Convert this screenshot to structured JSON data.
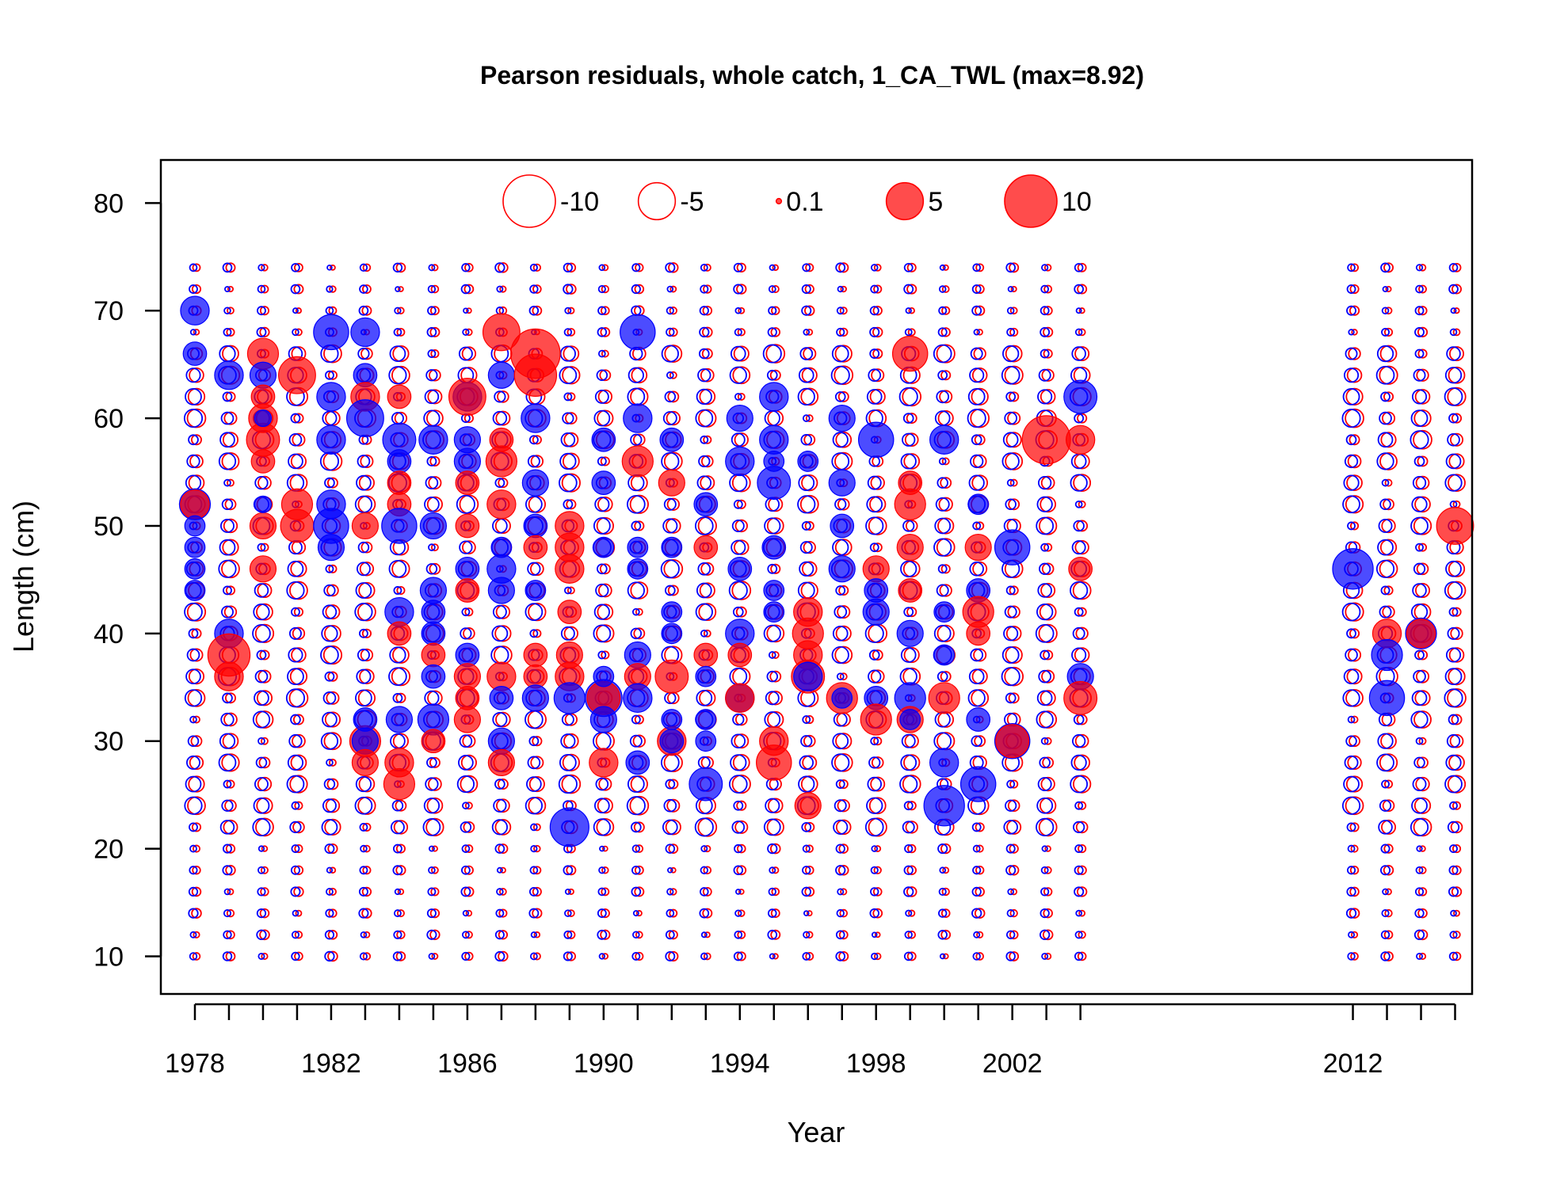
{
  "chart_data": {
    "type": "scatter",
    "title": "Pearson residuals, whole catch, 1_CA_TWL (max=8.92)",
    "xlabel": "Year",
    "ylabel": "Length (cm)",
    "xlim": [
      1977,
      2015.5
    ],
    "ylim": [
      6.5,
      84
    ],
    "xticks_labeled": [
      1978,
      1982,
      1986,
      1990,
      1994,
      1998,
      2002,
      2012
    ],
    "xticks_minor": [
      1978,
      1979,
      1980,
      1981,
      1982,
      1983,
      1984,
      1985,
      1986,
      1987,
      1988,
      1989,
      1990,
      1991,
      1992,
      1993,
      1994,
      1995,
      1996,
      1997,
      1998,
      1999,
      2000,
      2001,
      2002,
      2003,
      2004,
      2012,
      2013,
      2014,
      2015
    ],
    "yticks": [
      10,
      20,
      30,
      40,
      50,
      60,
      70,
      80
    ],
    "grid": false,
    "legend": {
      "placement": "top-center",
      "entries": [
        {
          "label": "-10",
          "value": -10
        },
        {
          "label": "-5",
          "value": -5
        },
        {
          "label": "0.1",
          "value": 0.1
        },
        {
          "label": "5",
          "value": 5
        },
        {
          "label": "10",
          "value": 10
        }
      ]
    },
    "colors": {
      "positive": "#ff0000",
      "negative": "#0000ff",
      "axis": "#000000"
    },
    "years_sampled": [
      1978,
      1979,
      1980,
      1981,
      1982,
      1983,
      1984,
      1985,
      1986,
      1987,
      1988,
      1989,
      1990,
      1991,
      1992,
      1993,
      1994,
      1995,
      1996,
      1997,
      1998,
      1999,
      2000,
      2001,
      2002,
      2003,
      2004,
      2012,
      2013,
      2014,
      2015
    ],
    "length_bins": [
      10,
      74,
      2
    ],
    "points": [
      [
        1978,
        70,
        -3
      ],
      [
        1978,
        66,
        -2
      ],
      [
        1978,
        52,
        -3.5
      ],
      [
        1978,
        52,
        3
      ],
      [
        1978,
        48,
        -1.5
      ],
      [
        1978,
        46,
        -1.5
      ],
      [
        1978,
        44,
        -1.5
      ],
      [
        1978,
        50,
        -1.5
      ],
      [
        1979,
        64,
        -3
      ],
      [
        1979,
        40,
        -3
      ],
      [
        1979,
        38,
        6.5
      ],
      [
        1979,
        36,
        3
      ],
      [
        1980,
        66,
        3.5
      ],
      [
        1980,
        64,
        -2.5
      ],
      [
        1980,
        62,
        2
      ],
      [
        1980,
        60,
        3
      ],
      [
        1980,
        58,
        4
      ],
      [
        1980,
        56,
        2
      ],
      [
        1980,
        50,
        2.5
      ],
      [
        1980,
        46,
        2.5
      ],
      [
        1980,
        52,
        -1
      ],
      [
        1980,
        60,
        -1
      ],
      [
        1981,
        64,
        5
      ],
      [
        1981,
        52,
        3.5
      ],
      [
        1981,
        50,
        4
      ],
      [
        1982,
        68,
        -4.5
      ],
      [
        1982,
        62,
        -3
      ],
      [
        1982,
        58,
        -3
      ],
      [
        1982,
        52,
        -3
      ],
      [
        1982,
        50,
        -4.5
      ],
      [
        1982,
        48,
        -2.5
      ],
      [
        1983,
        68,
        -3
      ],
      [
        1983,
        64,
        -2
      ],
      [
        1983,
        62,
        3
      ],
      [
        1983,
        60,
        -5
      ],
      [
        1983,
        50,
        2.5
      ],
      [
        1983,
        30,
        3.5
      ],
      [
        1983,
        30,
        -2.5
      ],
      [
        1983,
        28,
        2.5
      ],
      [
        1983,
        32,
        -2
      ],
      [
        1984,
        62,
        2
      ],
      [
        1984,
        58,
        -4
      ],
      [
        1984,
        56,
        -2
      ],
      [
        1984,
        54,
        2
      ],
      [
        1984,
        52,
        2
      ],
      [
        1984,
        50,
        -4.5
      ],
      [
        1984,
        42,
        -3
      ],
      [
        1984,
        40,
        2
      ],
      [
        1984,
        32,
        -2.5
      ],
      [
        1984,
        28,
        3
      ],
      [
        1984,
        26,
        3.5
      ],
      [
        1985,
        58,
        -3
      ],
      [
        1985,
        50,
        -2.5
      ],
      [
        1985,
        44,
        -2.5
      ],
      [
        1985,
        42,
        -2
      ],
      [
        1985,
        40,
        -2
      ],
      [
        1985,
        38,
        2
      ],
      [
        1985,
        36,
        -2
      ],
      [
        1985,
        32,
        -3.5
      ],
      [
        1985,
        30,
        2
      ],
      [
        1986,
        62,
        -3
      ],
      [
        1986,
        62,
        5
      ],
      [
        1986,
        58,
        -2.5
      ],
      [
        1986,
        56,
        -2.5
      ],
      [
        1986,
        54,
        2
      ],
      [
        1986,
        50,
        2
      ],
      [
        1986,
        46,
        -2
      ],
      [
        1986,
        44,
        2
      ],
      [
        1986,
        38,
        -2
      ],
      [
        1986,
        36,
        2.5
      ],
      [
        1986,
        34,
        2
      ],
      [
        1986,
        32,
        2.5
      ],
      [
        1987,
        68,
        5
      ],
      [
        1987,
        64,
        -2.5
      ],
      [
        1987,
        58,
        2
      ],
      [
        1987,
        56,
        3.5
      ],
      [
        1987,
        52,
        3
      ],
      [
        1987,
        48,
        -1.5
      ],
      [
        1987,
        46,
        -3
      ],
      [
        1987,
        44,
        -2.5
      ],
      [
        1987,
        36,
        3
      ],
      [
        1987,
        34,
        -2
      ],
      [
        1987,
        30,
        -2.5
      ],
      [
        1987,
        28,
        2.5
      ],
      [
        1988,
        66,
        8.92
      ],
      [
        1988,
        64,
        6.5
      ],
      [
        1988,
        60,
        -3
      ],
      [
        1988,
        54,
        -2.5
      ],
      [
        1988,
        50,
        -2
      ],
      [
        1988,
        48,
        2
      ],
      [
        1988,
        44,
        -1.5
      ],
      [
        1988,
        38,
        2
      ],
      [
        1988,
        36,
        2
      ],
      [
        1988,
        34,
        -2.5
      ],
      [
        1989,
        50,
        3
      ],
      [
        1989,
        48,
        3
      ],
      [
        1989,
        46,
        3
      ],
      [
        1989,
        42,
        2
      ],
      [
        1989,
        38,
        2.5
      ],
      [
        1989,
        36,
        3
      ],
      [
        1989,
        34,
        -3.5
      ],
      [
        1989,
        22,
        -5.5
      ],
      [
        1990,
        58,
        -2
      ],
      [
        1990,
        54,
        -2
      ],
      [
        1990,
        48,
        -1.5
      ],
      [
        1990,
        34,
        -5
      ],
      [
        1990,
        34,
        4
      ],
      [
        1990,
        32,
        -2.5
      ],
      [
        1990,
        28,
        3
      ],
      [
        1990,
        36,
        -1.5
      ],
      [
        1991,
        68,
        -4.5
      ],
      [
        1991,
        60,
        -3
      ],
      [
        1991,
        56,
        3.5
      ],
      [
        1991,
        48,
        -1.5
      ],
      [
        1991,
        38,
        -2.5
      ],
      [
        1991,
        36,
        2.5
      ],
      [
        1991,
        34,
        -3
      ],
      [
        1991,
        28,
        -2
      ],
      [
        1991,
        46,
        -1.5
      ],
      [
        1992,
        58,
        -2
      ],
      [
        1992,
        54,
        2.5
      ],
      [
        1992,
        48,
        -1.5
      ],
      [
        1992,
        42,
        -1.5
      ],
      [
        1992,
        40,
        -1.5
      ],
      [
        1992,
        36,
        4
      ],
      [
        1992,
        30,
        3
      ],
      [
        1992,
        30,
        -2
      ],
      [
        1992,
        32,
        -1.5
      ],
      [
        1993,
        52,
        -2
      ],
      [
        1993,
        48,
        2
      ],
      [
        1993,
        38,
        2
      ],
      [
        1993,
        36,
        -1.5
      ],
      [
        1993,
        32,
        -1.5
      ],
      [
        1993,
        30,
        -1.5
      ],
      [
        1993,
        26,
        -4
      ],
      [
        1994,
        60,
        -2.5
      ],
      [
        1994,
        56,
        -3
      ],
      [
        1994,
        46,
        -2
      ],
      [
        1994,
        40,
        -3
      ],
      [
        1994,
        38,
        2
      ],
      [
        1994,
        34,
        -3
      ],
      [
        1994,
        34,
        3
      ],
      [
        1995,
        62,
        -3
      ],
      [
        1995,
        58,
        -3
      ],
      [
        1995,
        54,
        -4
      ],
      [
        1995,
        48,
        -2
      ],
      [
        1995,
        44,
        -1.5
      ],
      [
        1995,
        42,
        -1.5
      ],
      [
        1995,
        30,
        3
      ],
      [
        1995,
        28,
        4.5
      ],
      [
        1995,
        56,
        -1.5
      ],
      [
        1996,
        42,
        3
      ],
      [
        1996,
        40,
        3.5
      ],
      [
        1996,
        38,
        3
      ],
      [
        1996,
        36,
        4
      ],
      [
        1996,
        36,
        -3
      ],
      [
        1996,
        24,
        2.5
      ],
      [
        1996,
        56,
        -1.5
      ],
      [
        1997,
        60,
        -2.5
      ],
      [
        1997,
        54,
        -2.5
      ],
      [
        1997,
        50,
        -2
      ],
      [
        1997,
        46,
        -2.5
      ],
      [
        1997,
        34,
        3.5
      ],
      [
        1997,
        34,
        -1.5
      ],
      [
        1998,
        58,
        -4.5
      ],
      [
        1998,
        46,
        2.5
      ],
      [
        1998,
        44,
        -2
      ],
      [
        1998,
        42,
        -2.5
      ],
      [
        1998,
        34,
        -2
      ],
      [
        1998,
        32,
        3.5
      ],
      [
        1999,
        66,
        4.5
      ],
      [
        1999,
        54,
        2
      ],
      [
        1999,
        52,
        3.5
      ],
      [
        1999,
        48,
        2.5
      ],
      [
        1999,
        44,
        2
      ],
      [
        1999,
        40,
        -2.5
      ],
      [
        1999,
        34,
        -3.5
      ],
      [
        1999,
        32,
        2.5
      ],
      [
        1999,
        32,
        -1.5
      ],
      [
        2000,
        58,
        -3
      ],
      [
        2000,
        34,
        3.5
      ],
      [
        2000,
        28,
        -3
      ],
      [
        2000,
        24,
        -6
      ],
      [
        2000,
        38,
        -1.5
      ],
      [
        2000,
        42,
        -1.5
      ],
      [
        2001,
        52,
        -1.5
      ],
      [
        2001,
        48,
        2.5
      ],
      [
        2001,
        44,
        -2
      ],
      [
        2001,
        42,
        3.5
      ],
      [
        2001,
        40,
        2
      ],
      [
        2001,
        32,
        -2
      ],
      [
        2001,
        26,
        -4.5
      ],
      [
        2002,
        48,
        -4.5
      ],
      [
        2002,
        30,
        -4.5
      ],
      [
        2002,
        30,
        4
      ],
      [
        2003,
        58,
        8.5
      ],
      [
        2004,
        62,
        -4
      ],
      [
        2004,
        58,
        3
      ],
      [
        2004,
        46,
        2
      ],
      [
        2004,
        36,
        -2.5
      ],
      [
        2004,
        34,
        4
      ],
      [
        2012,
        46,
        -6
      ],
      [
        2013,
        40,
        3
      ],
      [
        2013,
        38,
        -3.5
      ],
      [
        2013,
        34,
        -4.5
      ],
      [
        2014,
        40,
        -3.5
      ],
      [
        2014,
        40,
        3
      ],
      [
        2015,
        50,
        5
      ]
    ]
  }
}
